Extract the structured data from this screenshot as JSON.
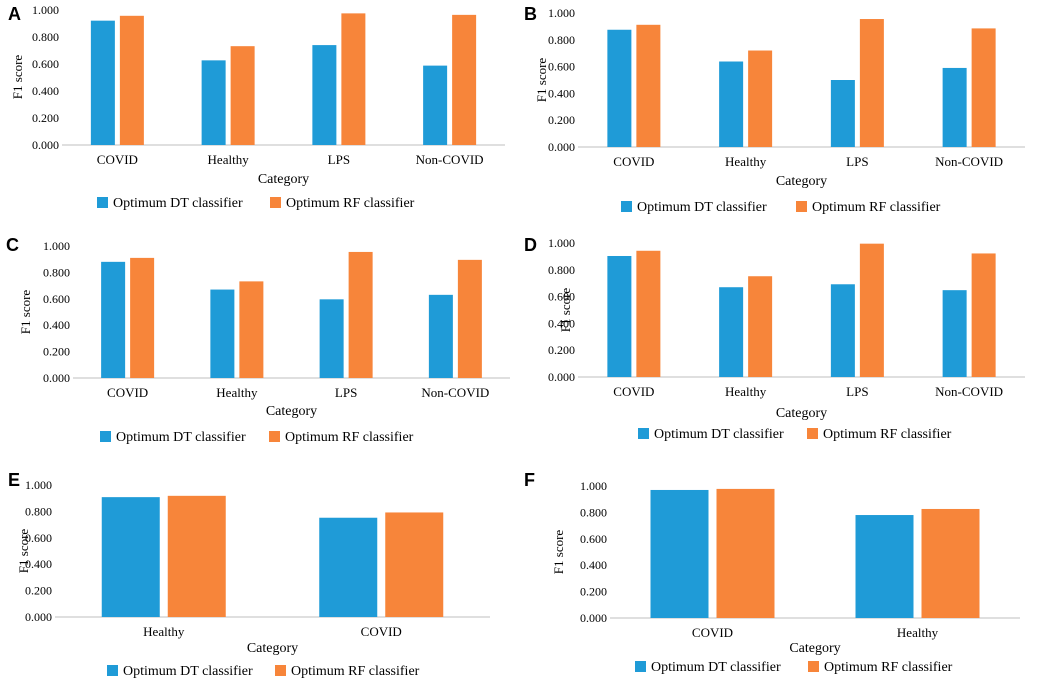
{
  "chart_data": [
    {
      "panel": "A",
      "type": "bar",
      "categories": [
        "COVID",
        "Healthy",
        "LPS",
        "Non-COVID"
      ],
      "series": [
        {
          "name": "Optimum DT classifier",
          "values": [
            0.921,
            0.627,
            0.74,
            0.588
          ]
        },
        {
          "name": "Optimum RF classifier",
          "values": [
            0.957,
            0.732,
            0.975,
            0.964
          ]
        }
      ],
      "ylabel": "F1 score",
      "xlabel": "Category",
      "ylim": [
        0,
        1.0
      ],
      "yticks": [
        "0.000",
        "0.200",
        "0.400",
        "0.600",
        "0.800",
        "1.000"
      ],
      "colors": [
        "#1f9bd7",
        "#f7853a"
      ]
    },
    {
      "panel": "B",
      "type": "bar",
      "categories": [
        "COVID",
        "Healthy",
        "LPS",
        "Non-COVID"
      ],
      "series": [
        {
          "name": "Optimum DT classifier",
          "values": [
            0.875,
            0.638,
            0.5,
            0.59
          ]
        },
        {
          "name": "Optimum RF classifier",
          "values": [
            0.912,
            0.72,
            0.955,
            0.885
          ]
        }
      ],
      "ylabel": "F1 score",
      "xlabel": "Category",
      "ylim": [
        0,
        1.0
      ],
      "yticks": [
        "0.000",
        "0.200",
        "0.400",
        "0.600",
        "0.800",
        "1.000"
      ],
      "colors": [
        "#1f9bd7",
        "#f7853a"
      ]
    },
    {
      "panel": "C",
      "type": "bar",
      "categories": [
        "COVID",
        "Healthy",
        "LPS",
        "Non-COVID"
      ],
      "series": [
        {
          "name": "Optimum DT classifier",
          "values": [
            0.88,
            0.67,
            0.596,
            0.63
          ]
        },
        {
          "name": "Optimum RF classifier",
          "values": [
            0.91,
            0.732,
            0.955,
            0.895
          ]
        }
      ],
      "ylabel": "F1 score",
      "xlabel": "Category",
      "ylim": [
        0,
        1.0
      ],
      "yticks": [
        "0.000",
        "0.200",
        "0.400",
        "0.600",
        "0.800",
        "1.000"
      ],
      "colors": [
        "#1f9bd7",
        "#f7853a"
      ]
    },
    {
      "panel": "D",
      "type": "bar",
      "categories": [
        "COVID",
        "Healthy",
        "LPS",
        "Non-COVID"
      ],
      "series": [
        {
          "name": "Optimum DT classifier",
          "values": [
            0.903,
            0.67,
            0.692,
            0.648
          ]
        },
        {
          "name": "Optimum RF classifier",
          "values": [
            0.942,
            0.752,
            0.995,
            0.922
          ]
        }
      ],
      "ylabel": "F1 score",
      "xlabel": "Category",
      "ylim": [
        0,
        1.0
      ],
      "yticks": [
        "0.000",
        "0.200",
        "0.400",
        "0.600",
        "0.800",
        "1.000"
      ],
      "colors": [
        "#1f9bd7",
        "#f7853a"
      ]
    },
    {
      "panel": "E",
      "type": "bar",
      "categories": [
        "Healthy",
        "COVID"
      ],
      "series": [
        {
          "name": "Optimum DT classifier",
          "values": [
            0.908,
            0.752
          ]
        },
        {
          "name": "Optimum RF classifier",
          "values": [
            0.918,
            0.792
          ]
        }
      ],
      "ylabel": "F1 score",
      "xlabel": "Category",
      "ylim": [
        0,
        1.0
      ],
      "yticks": [
        "0.000",
        "0.200",
        "0.400",
        "0.600",
        "0.800",
        "1.000"
      ],
      "colors": [
        "#1f9bd7",
        "#f7853a"
      ]
    },
    {
      "panel": "F",
      "type": "bar",
      "categories": [
        "COVID",
        "Healthy"
      ],
      "series": [
        {
          "name": "Optimum DT classifier",
          "values": [
            0.97,
            0.78
          ]
        },
        {
          "name": "Optimum RF classifier",
          "values": [
            0.978,
            0.826
          ]
        }
      ],
      "ylabel": "F1 score",
      "xlabel": "Category",
      "ylim": [
        0,
        1.0
      ],
      "yticks": [
        "0.000",
        "0.200",
        "0.400",
        "0.600",
        "0.800",
        "1.000"
      ],
      "colors": [
        "#1f9bd7",
        "#f7853a"
      ]
    }
  ]
}
